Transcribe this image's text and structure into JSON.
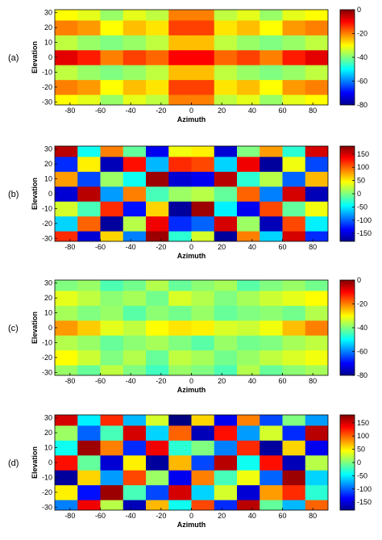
{
  "chart_data": [
    {
      "type": "heatmap",
      "label": "(a)",
      "xlabel": "Azimuth",
      "ylabel": "Elevation",
      "colormap": "jet",
      "x": [
        -82.5,
        -67.5,
        -52.5,
        -37.5,
        -22.5,
        -7.5,
        7.5,
        22.5,
        37.5,
        52.5,
        67.5,
        82.5
      ],
      "y": [
        -30,
        -20,
        -10,
        0,
        10,
        20,
        30
      ],
      "z": [
        [
          -30,
          -32,
          -38,
          -32,
          -35,
          -20,
          -20,
          -35,
          -32,
          -38,
          -32,
          -30
        ],
        [
          -20,
          -22,
          -30,
          -25,
          -28,
          -15,
          -15,
          -28,
          -25,
          -30,
          -22,
          -20
        ],
        [
          -35,
          -38,
          -40,
          -38,
          -35,
          -25,
          -25,
          -35,
          -38,
          -40,
          -38,
          -35
        ],
        [
          -8,
          -12,
          -20,
          -15,
          -18,
          -10,
          -10,
          -18,
          -15,
          -20,
          -12,
          -8
        ],
        [
          -35,
          -38,
          -40,
          -38,
          -35,
          -25,
          -25,
          -35,
          -38,
          -40,
          -38,
          -35
        ],
        [
          -20,
          -22,
          -30,
          -25,
          -28,
          -15,
          -15,
          -28,
          -25,
          -30,
          -22,
          -20
        ],
        [
          -30,
          -32,
          -38,
          -32,
          -35,
          -20,
          -20,
          -35,
          -32,
          -38,
          -32,
          -30
        ]
      ],
      "xlim": [
        -90,
        90
      ],
      "ylim": [
        -32,
        32
      ],
      "xticks": [
        -80,
        -60,
        -40,
        -20,
        0,
        20,
        40,
        60,
        80
      ],
      "yticks": [
        -30,
        -20,
        -10,
        0,
        10,
        20,
        30
      ],
      "clim": [
        -80,
        0
      ],
      "cticks": [
        0,
        -20,
        -40,
        -60,
        -80
      ]
    },
    {
      "type": "heatmap",
      "label": "(b)",
      "xlabel": "Azimuth",
      "ylabel": "Elevation",
      "colormap": "jet",
      "x": [
        -82.5,
        -67.5,
        -52.5,
        -37.5,
        -22.5,
        -7.5,
        7.5,
        22.5,
        37.5,
        52.5,
        67.5,
        82.5
      ],
      "y": [
        -30,
        -20,
        -10,
        0,
        10,
        20,
        30
      ],
      "z": [
        [
          120,
          -150,
          60,
          -90,
          170,
          -30,
          30,
          -170,
          90,
          -60,
          150,
          -120
        ],
        [
          -60,
          100,
          -170,
          20,
          140,
          -120,
          -100,
          150,
          10,
          -160,
          110,
          -50
        ],
        [
          30,
          -20,
          120,
          -130,
          60,
          -170,
          170,
          -50,
          -140,
          110,
          -10,
          40
        ],
        [
          -150,
          160,
          -80,
          90,
          -20,
          10,
          20,
          -10,
          100,
          -90,
          150,
          -160
        ],
        [
          80,
          -110,
          10,
          -40,
          170,
          -150,
          -140,
          160,
          -30,
          20,
          -100,
          70
        ],
        [
          -120,
          50,
          -160,
          130,
          -70,
          120,
          110,
          -60,
          140,
          -170,
          40,
          -110
        ],
        [
          160,
          -40,
          90,
          -10,
          -140,
          40,
          50,
          -150,
          0,
          80,
          -30,
          150
        ]
      ],
      "xlim": [
        -90,
        90
      ],
      "ylim": [
        -32,
        32
      ],
      "xticks": [
        -80,
        -60,
        -40,
        -20,
        0,
        20,
        40,
        60,
        80
      ],
      "yticks": [
        -30,
        -20,
        -10,
        0,
        10,
        20,
        30
      ],
      "clim": [
        -180,
        180
      ],
      "cticks": [
        150,
        100,
        50,
        0,
        -50,
        -100,
        -150
      ]
    },
    {
      "type": "heatmap",
      "label": "(c)",
      "xlabel": "Azimuth",
      "ylabel": "Elevation",
      "colormap": "jet",
      "x": [
        -82.5,
        -67.5,
        -52.5,
        -37.5,
        -22.5,
        -7.5,
        7.5,
        22.5,
        37.5,
        52.5,
        67.5,
        82.5
      ],
      "y": [
        -30,
        -20,
        -10,
        0,
        10,
        20,
        30
      ],
      "z": [
        [
          -38,
          -42,
          -35,
          -40,
          -45,
          -38,
          -40,
          -44,
          -36,
          -42,
          -39,
          -37
        ],
        [
          -30,
          -34,
          -40,
          -36,
          -42,
          -35,
          -37,
          -41,
          -38,
          -35,
          -33,
          -31
        ],
        [
          -36,
          -38,
          -42,
          -39,
          -37,
          -40,
          -43,
          -38,
          -41,
          -40,
          -37,
          -35
        ],
        [
          -22,
          -26,
          -32,
          -35,
          -30,
          -28,
          -29,
          -33,
          -34,
          -31,
          -25,
          -20
        ],
        [
          -37,
          -40,
          -38,
          -43,
          -39,
          -41,
          -38,
          -42,
          -40,
          -39,
          -41,
          -36
        ],
        [
          -32,
          -35,
          -39,
          -37,
          -41,
          -33,
          -36,
          -40,
          -37,
          -34,
          -32,
          -30
        ],
        [
          -40,
          -38,
          -44,
          -41,
          -36,
          -42,
          -39,
          -37,
          -43,
          -40,
          -38,
          -41
        ]
      ],
      "xlim": [
        -90,
        90
      ],
      "ylim": [
        -32,
        32
      ],
      "xticks": [
        -80,
        -60,
        -40,
        -20,
        0,
        20,
        40,
        60,
        80
      ],
      "yticks": [
        -30,
        -20,
        -10,
        0,
        10,
        20,
        30
      ],
      "clim": [
        -80,
        0
      ],
      "cticks": [
        0,
        -20,
        -40,
        -60,
        -80
      ]
    },
    {
      "type": "heatmap",
      "label": "(d)",
      "xlabel": "Azimuth",
      "ylabel": "Elevation",
      "colormap": "jet",
      "x": [
        -82.5,
        -67.5,
        -52.5,
        -37.5,
        -22.5,
        -7.5,
        7.5,
        22.5,
        37.5,
        52.5,
        67.5,
        82.5
      ],
      "y": [
        -30,
        -20,
        -10,
        0,
        10,
        20,
        30
      ],
      "z": [
        [
          -90,
          140,
          20,
          -160,
          70,
          -40,
          110,
          -120,
          160,
          -10,
          -70,
          100
        ],
        [
          50,
          -130,
          170,
          -20,
          -110,
          150,
          -60,
          30,
          -150,
          80,
          120,
          -30
        ],
        [
          -170,
          60,
          -80,
          110,
          10,
          -140,
          90,
          -20,
          40,
          -100,
          170,
          -60
        ],
        [
          130,
          -10,
          -150,
          50,
          -170,
          70,
          -110,
          160,
          -40,
          130,
          -160,
          20
        ],
        [
          -40,
          170,
          90,
          -120,
          140,
          -30,
          0,
          -90,
          120,
          -170,
          60,
          -140
        ],
        [
          10,
          -100,
          -20,
          150,
          -60,
          100,
          -160,
          130,
          -80,
          30,
          -120,
          160
        ],
        [
          150,
          -50,
          120,
          -70,
          30,
          -180,
          60,
          -140,
          90,
          -110,
          0,
          -80
        ]
      ],
      "xlim": [
        -90,
        90
      ],
      "ylim": [
        -32,
        32
      ],
      "xticks": [
        -80,
        -60,
        -40,
        -20,
        0,
        20,
        40,
        60,
        80
      ],
      "yticks": [
        -30,
        -20,
        -10,
        0,
        10,
        20,
        30
      ],
      "clim": [
        -180,
        180
      ],
      "cticks": [
        150,
        100,
        50,
        0,
        -50,
        -100,
        -150
      ]
    }
  ]
}
